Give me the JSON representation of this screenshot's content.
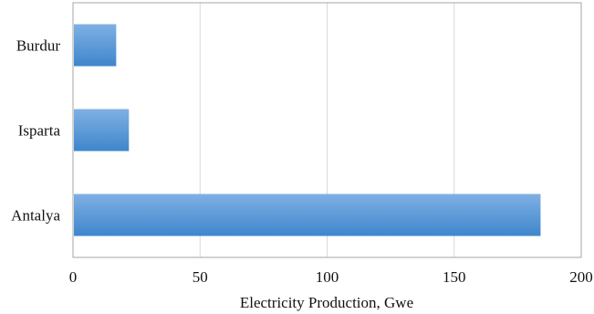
{
  "chart_data": {
    "type": "bar",
    "orientation": "horizontal",
    "categories": [
      "Burdur",
      "Isparta",
      "Antalya"
    ],
    "values": [
      17,
      22,
      184
    ],
    "title": "",
    "xlabel": "Electricity Production, Gwe",
    "ylabel": "",
    "xlim": [
      0,
      200
    ],
    "xticks": [
      "0",
      "50",
      "100",
      "150",
      "200"
    ],
    "grid": true,
    "legend": "none",
    "colors": {
      "bar_top": "#7fb0e3",
      "bar_bottom": "#3f86cc",
      "grid": "#d9d9d9",
      "frame": "#a6a6a6"
    }
  }
}
